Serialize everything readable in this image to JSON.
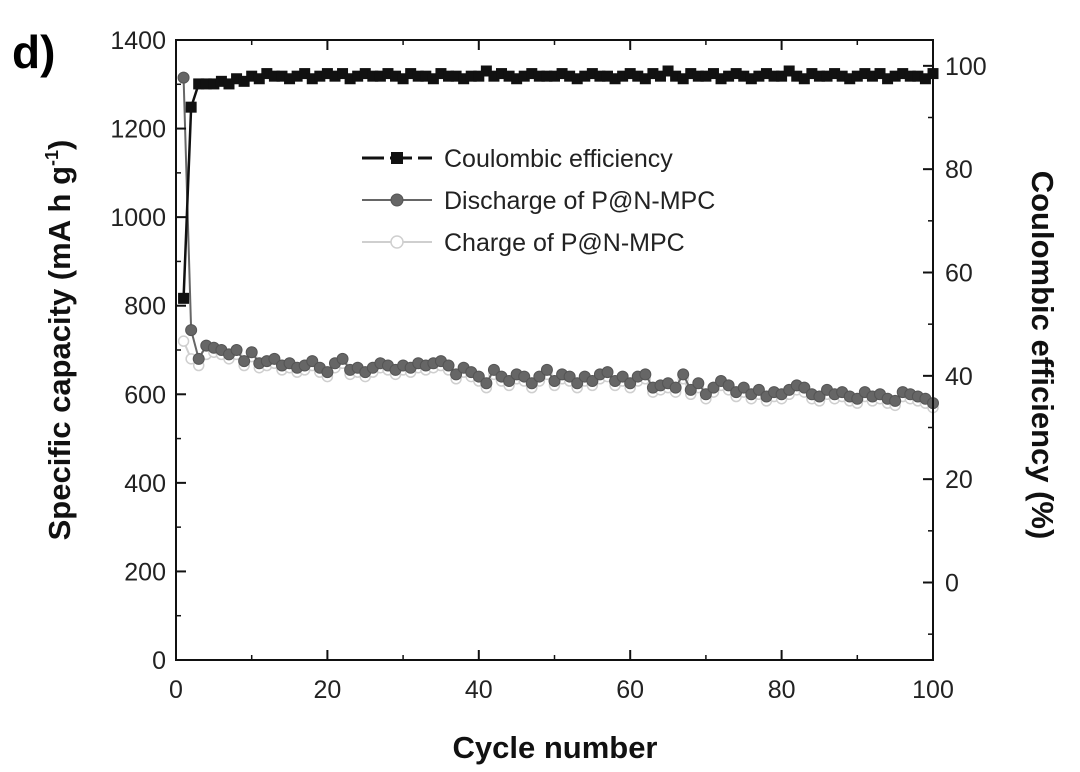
{
  "panel_label": "d)",
  "chart_data": {
    "type": "line",
    "xlabel": "Cycle number",
    "ylabel_left_prefix": "Specific capacity (mA h g",
    "ylabel_left_sup": "-1",
    "ylabel_left_suffix": ")",
    "ylabel_right": "Coulombic efficiency (%)",
    "xlim": [
      0,
      100
    ],
    "ylim_left": [
      0,
      1400
    ],
    "ylim_right": [
      -15,
      105
    ],
    "x_ticks": [
      0,
      20,
      40,
      60,
      80,
      100
    ],
    "y_left_ticks": [
      0,
      200,
      400,
      600,
      800,
      1000,
      1200,
      1400
    ],
    "y_right_ticks": [
      0,
      20,
      40,
      60,
      80,
      100
    ],
    "grid": false,
    "legend_position": "upper-center",
    "colors": {
      "coulombic": "#111111",
      "discharge": "#666666",
      "charge": "#cfcfcf"
    },
    "series": [
      {
        "name": "Coulombic efficiency",
        "axis": "right",
        "marker": "square",
        "x": [
          1,
          2,
          3,
          4,
          5,
          6,
          7,
          8,
          9,
          10,
          11,
          12,
          13,
          14,
          15,
          16,
          17,
          18,
          19,
          20,
          21,
          22,
          23,
          24,
          25,
          26,
          27,
          28,
          29,
          30,
          31,
          32,
          33,
          34,
          35,
          36,
          37,
          38,
          39,
          40,
          41,
          42,
          43,
          44,
          45,
          46,
          47,
          48,
          49,
          50,
          51,
          52,
          53,
          54,
          55,
          56,
          57,
          58,
          59,
          60,
          61,
          62,
          63,
          64,
          65,
          66,
          67,
          68,
          69,
          70,
          71,
          72,
          73,
          74,
          75,
          76,
          77,
          78,
          79,
          80,
          81,
          82,
          83,
          84,
          85,
          86,
          87,
          88,
          89,
          90,
          91,
          92,
          93,
          94,
          95,
          96,
          97,
          98,
          99,
          100
        ],
        "values": [
          55,
          92,
          96.5,
          96.5,
          96.5,
          97,
          96.5,
          97.5,
          97,
          98,
          97.5,
          98.5,
          98,
          98,
          97.5,
          98,
          98.5,
          97.5,
          98,
          98.5,
          98,
          98.5,
          97.5,
          98,
          98.5,
          98,
          98,
          98.5,
          98,
          97.5,
          98.5,
          98,
          98,
          97.5,
          98.5,
          98,
          98,
          97.5,
          98,
          98,
          99,
          98,
          98.5,
          98,
          97.5,
          98,
          98.5,
          98,
          98,
          98,
          98.5,
          98,
          97.5,
          98,
          98.5,
          98,
          98,
          97.5,
          98,
          98.5,
          98,
          97.5,
          98.5,
          98,
          99,
          98,
          97.5,
          98.5,
          98,
          98,
          98.5,
          97.5,
          98,
          98.5,
          98,
          97.5,
          98,
          98.5,
          98,
          98,
          99,
          98,
          97.5,
          98.5,
          98,
          98,
          98.5,
          98,
          97.5,
          98,
          98.5,
          98,
          98.5,
          97.5,
          98,
          98.5,
          98,
          98,
          97.5,
          98.5
        ]
      },
      {
        "name": "Discharge of P@N-MPC",
        "axis": "left",
        "marker": "circle",
        "x": [
          1,
          2,
          3,
          4,
          5,
          6,
          7,
          8,
          9,
          10,
          11,
          12,
          13,
          14,
          15,
          16,
          17,
          18,
          19,
          20,
          21,
          22,
          23,
          24,
          25,
          26,
          27,
          28,
          29,
          30,
          31,
          32,
          33,
          34,
          35,
          36,
          37,
          38,
          39,
          40,
          41,
          42,
          43,
          44,
          45,
          46,
          47,
          48,
          49,
          50,
          51,
          52,
          53,
          54,
          55,
          56,
          57,
          58,
          59,
          60,
          61,
          62,
          63,
          64,
          65,
          66,
          67,
          68,
          69,
          70,
          71,
          72,
          73,
          74,
          75,
          76,
          77,
          78,
          79,
          80,
          81,
          82,
          83,
          84,
          85,
          86,
          87,
          88,
          89,
          90,
          91,
          92,
          93,
          94,
          95,
          96,
          97,
          98,
          99,
          100
        ],
        "values": [
          1315,
          745,
          680,
          710,
          705,
          700,
          690,
          700,
          675,
          695,
          670,
          675,
          680,
          665,
          670,
          660,
          665,
          675,
          660,
          650,
          670,
          680,
          655,
          660,
          650,
          660,
          670,
          665,
          655,
          665,
          660,
          670,
          665,
          670,
          675,
          665,
          645,
          660,
          650,
          640,
          625,
          655,
          640,
          630,
          645,
          640,
          625,
          640,
          655,
          630,
          645,
          640,
          625,
          640,
          630,
          645,
          650,
          630,
          640,
          625,
          640,
          645,
          615,
          620,
          625,
          615,
          645,
          610,
          625,
          600,
          615,
          630,
          620,
          605,
          615,
          600,
          610,
          595,
          605,
          600,
          610,
          620,
          615,
          600,
          595,
          610,
          600,
          605,
          595,
          590,
          605,
          595,
          600,
          590,
          585,
          605,
          600,
          595,
          590,
          580
        ]
      },
      {
        "name": "Charge of P@N-MPC",
        "axis": "left",
        "marker": "open-circle",
        "x": [
          1,
          2,
          3,
          4,
          5,
          6,
          7,
          8,
          9,
          10,
          11,
          12,
          13,
          14,
          15,
          16,
          17,
          18,
          19,
          20,
          21,
          22,
          23,
          24,
          25,
          26,
          27,
          28,
          29,
          30,
          31,
          32,
          33,
          34,
          35,
          36,
          37,
          38,
          39,
          40,
          41,
          42,
          43,
          44,
          45,
          46,
          47,
          48,
          49,
          50,
          51,
          52,
          53,
          54,
          55,
          56,
          57,
          58,
          59,
          60,
          61,
          62,
          63,
          64,
          65,
          66,
          67,
          68,
          69,
          70,
          71,
          72,
          73,
          74,
          75,
          76,
          77,
          78,
          79,
          80,
          81,
          82,
          83,
          84,
          85,
          86,
          87,
          88,
          89,
          90,
          91,
          92,
          93,
          94,
          95,
          96,
          97,
          98,
          99,
          100
        ],
        "values": [
          720,
          680,
          665,
          690,
          695,
          690,
          680,
          690,
          665,
          685,
          660,
          665,
          670,
          655,
          660,
          650,
          655,
          665,
          650,
          640,
          660,
          670,
          645,
          650,
          640,
          650,
          660,
          655,
          645,
          655,
          650,
          660,
          655,
          660,
          665,
          655,
          635,
          650,
          640,
          630,
          615,
          645,
          630,
          620,
          635,
          630,
          615,
          630,
          645,
          620,
          635,
          630,
          615,
          630,
          620,
          635,
          640,
          620,
          630,
          615,
          630,
          635,
          605,
          610,
          615,
          605,
          635,
          600,
          615,
          590,
          605,
          620,
          610,
          595,
          605,
          590,
          600,
          585,
          595,
          590,
          600,
          610,
          605,
          590,
          585,
          600,
          590,
          595,
          585,
          580,
          595,
          585,
          590,
          580,
          575,
          595,
          590,
          585,
          580,
          570
        ]
      }
    ]
  }
}
